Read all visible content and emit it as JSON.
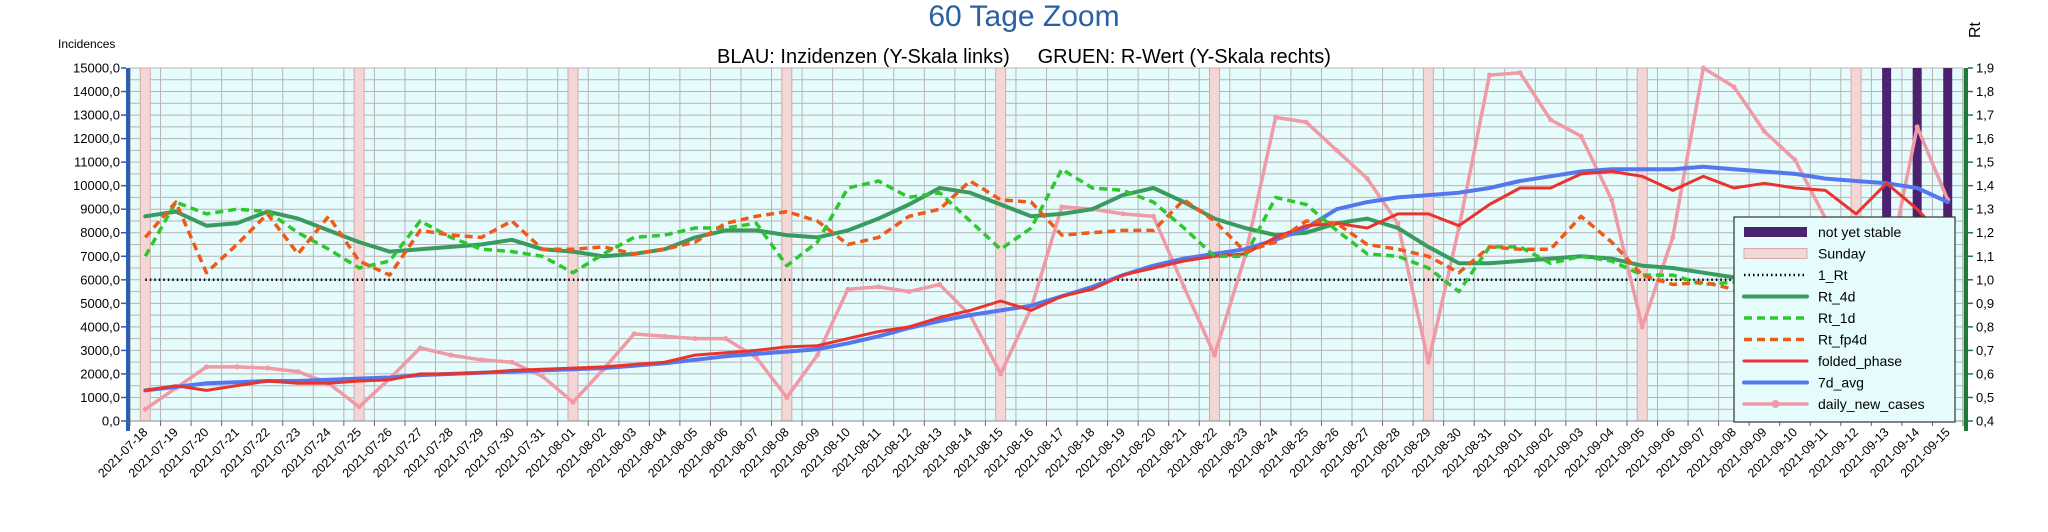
{
  "chart_data": {
    "type": "line",
    "title": "60 Tage Zoom",
    "subtitle": "BLAU: Inzidenzen (Y-Skala links)     GRUEN: R-Wert (Y-Skala rechts)",
    "ylabel": "Incidences",
    "y2label": "Rt",
    "ylim": [
      0,
      15000
    ],
    "y2lim": [
      0.4,
      1.9
    ],
    "yticks": [
      "0,0",
      "1000,0",
      "2000,0",
      "3000,0",
      "4000,0",
      "5000,0",
      "6000,0",
      "7000,0",
      "8000,0",
      "9000,0",
      "10000,0",
      "11000,0",
      "12000,0",
      "13000,0",
      "14000,0",
      "15000,0"
    ],
    "y2ticks": [
      "0,4",
      "0,5",
      "0,6",
      "0,7",
      "0,8",
      "0,9",
      "1,0",
      "1,1",
      "1,2",
      "1,3",
      "1,4",
      "1,5",
      "1,6",
      "1,7",
      "1,8",
      "1,9"
    ],
    "grid": true,
    "legend_position": "right",
    "colors": {
      "background": "#e6fcfc",
      "grid": "#b4b4b4",
      "left_axis": "#2a5fb4",
      "right_axis": "#1f7a3a",
      "title": "#2a5fa6"
    },
    "x": [
      "2021-07-18",
      "2021-07-19",
      "2021-07-20",
      "2021-07-21",
      "2021-07-22",
      "2021-07-23",
      "2021-07-24",
      "2021-07-25",
      "2021-07-26",
      "2021-07-27",
      "2021-07-28",
      "2021-07-29",
      "2021-07-30",
      "2021-07-31",
      "2021-08-01",
      "2021-08-02",
      "2021-08-03",
      "2021-08-04",
      "2021-08-05",
      "2021-08-06",
      "2021-08-07",
      "2021-08-08",
      "2021-08-09",
      "2021-08-10",
      "2021-08-11",
      "2021-08-12",
      "2021-08-13",
      "2021-08-14",
      "2021-08-15",
      "2021-08-16",
      "2021-08-17",
      "2021-08-18",
      "2021-08-19",
      "2021-08-20",
      "2021-08-21",
      "2021-08-22",
      "2021-08-23",
      "2021-08-24",
      "2021-08-25",
      "2021-08-26",
      "2021-08-27",
      "2021-08-28",
      "2021-08-29",
      "2021-08-30",
      "2021-08-31",
      "2021-09-01",
      "2021-09-02",
      "2021-09-03",
      "2021-09-04",
      "2021-09-05",
      "2021-09-06",
      "2021-09-07",
      "2021-09-08",
      "2021-09-09",
      "2021-09-10",
      "2021-09-11",
      "2021-09-12",
      "2021-09-13",
      "2021-09-14",
      "2021-09-15"
    ],
    "sundays": [
      "2021-07-18",
      "2021-07-25",
      "2021-08-01",
      "2021-08-08",
      "2021-08-15",
      "2021-08-22",
      "2021-08-29",
      "2021-09-05",
      "2021-09-12"
    ],
    "not_yet_stable": [
      "2021-09-13",
      "2021-09-14",
      "2021-09-15"
    ],
    "series": [
      {
        "name": "not yet stable",
        "style": "bar",
        "color": "#4b2170"
      },
      {
        "name": "Sunday",
        "style": "bar",
        "color": "#f3d6d6"
      },
      {
        "name": "1_Rt",
        "axis": "right",
        "style": "dotted",
        "color": "#000000",
        "values": [
          1.0,
          1.0,
          1.0,
          1.0,
          1.0,
          1.0,
          1.0,
          1.0,
          1.0,
          1.0,
          1.0,
          1.0,
          1.0,
          1.0,
          1.0,
          1.0,
          1.0,
          1.0,
          1.0,
          1.0,
          1.0,
          1.0,
          1.0,
          1.0,
          1.0,
          1.0,
          1.0,
          1.0,
          1.0,
          1.0,
          1.0,
          1.0,
          1.0,
          1.0,
          1.0,
          1.0,
          1.0,
          1.0,
          1.0,
          1.0,
          1.0,
          1.0,
          1.0,
          1.0,
          1.0,
          1.0,
          1.0,
          1.0,
          1.0,
          1.0,
          1.0,
          1.0,
          1.0,
          1.0,
          1.0,
          1.0,
          1.0,
          1.0,
          1.0,
          1.0
        ]
      },
      {
        "name": "Rt_4d",
        "axis": "right",
        "style": "solid",
        "color": "#3a9a5f",
        "values": [
          1.27,
          1.29,
          1.23,
          1.24,
          1.29,
          1.26,
          1.21,
          1.16,
          1.12,
          1.13,
          1.14,
          1.15,
          1.17,
          1.13,
          1.12,
          1.1,
          1.11,
          1.13,
          1.18,
          1.21,
          1.21,
          1.19,
          1.18,
          1.21,
          1.26,
          1.32,
          1.39,
          1.37,
          1.32,
          1.27,
          1.28,
          1.3,
          1.36,
          1.39,
          1.33,
          1.26,
          1.22,
          1.19,
          1.2,
          1.24,
          1.26,
          1.22,
          1.14,
          1.07,
          1.07,
          1.08,
          1.09,
          1.1,
          1.09,
          1.06,
          1.05,
          1.03,
          1.01,
          1.0,
          0.99,
          0.98,
          0.96,
          0.96,
          0.93,
          0.89
        ]
      },
      {
        "name": "Rt_1d",
        "axis": "right",
        "style": "dashed",
        "color": "#2ec72e",
        "values": [
          1.1,
          1.33,
          1.28,
          1.3,
          1.29,
          1.2,
          1.13,
          1.05,
          1.08,
          1.25,
          1.18,
          1.13,
          1.12,
          1.1,
          1.03,
          1.11,
          1.18,
          1.19,
          1.22,
          1.22,
          1.24,
          1.06,
          1.16,
          1.39,
          1.42,
          1.35,
          1.37,
          1.25,
          1.13,
          1.22,
          1.47,
          1.39,
          1.38,
          1.33,
          1.22,
          1.1,
          1.1,
          1.35,
          1.32,
          1.21,
          1.11,
          1.1,
          1.05,
          0.95,
          1.14,
          1.14,
          1.07,
          1.1,
          1.08,
          1.02,
          1.02,
          0.98,
          0.99,
          0.98,
          0.96,
          0.95,
          0.96,
          0.97,
          0.93,
          0.76
        ]
      },
      {
        "name": "Rt_fp4d",
        "axis": "right",
        "style": "dashed",
        "color": "#ee5a1a",
        "values": [
          1.18,
          1.33,
          1.03,
          1.15,
          1.28,
          1.11,
          1.27,
          1.08,
          1.02,
          1.21,
          1.19,
          1.18,
          1.25,
          1.13,
          1.13,
          1.14,
          1.11,
          1.13,
          1.16,
          1.24,
          1.27,
          1.29,
          1.25,
          1.15,
          1.18,
          1.27,
          1.3,
          1.42,
          1.34,
          1.33,
          1.19,
          1.2,
          1.21,
          1.21,
          1.34,
          1.25,
          1.12,
          1.16,
          1.25,
          1.24,
          1.15,
          1.13,
          1.1,
          1.03,
          1.14,
          1.13,
          1.13,
          1.27,
          1.16,
          1.02,
          0.98,
          0.99,
          0.96,
          0.93,
          0.96,
          1.02,
          0.9,
          0.98,
          0.96,
          0.84
        ]
      },
      {
        "name": "folded_phase",
        "axis": "left",
        "style": "solid",
        "color": "#e8342e",
        "values": [
          1300,
          1500,
          1300,
          1500,
          1700,
          1600,
          1600,
          1700,
          1750,
          2000,
          2000,
          2050,
          2150,
          2200,
          2250,
          2300,
          2400,
          2500,
          2800,
          2900,
          3000,
          3150,
          3200,
          3500,
          3800,
          4000,
          4400,
          4700,
          5100,
          4700,
          5300,
          5600,
          6200,
          6500,
          6800,
          7000,
          7100,
          7800,
          8300,
          8400,
          8200,
          8800,
          8800,
          8300,
          9200,
          9900,
          9900,
          10500,
          10600,
          10400,
          9800,
          10400,
          9900,
          10100,
          9900,
          9800,
          8800,
          10100,
          9000,
          7600
        ]
      },
      {
        "name": "7d_avg",
        "axis": "left",
        "style": "solid",
        "color": "#5577ee",
        "values": [
          1300,
          1450,
          1600,
          1650,
          1700,
          1700,
          1750,
          1800,
          1850,
          1950,
          2000,
          2050,
          2100,
          2150,
          2200,
          2250,
          2350,
          2450,
          2600,
          2750,
          2850,
          2950,
          3050,
          3300,
          3600,
          3950,
          4250,
          4500,
          4700,
          4900,
          5300,
          5700,
          6200,
          6600,
          6900,
          7100,
          7300,
          7700,
          8200,
          9000,
          9300,
          9500,
          9600,
          9700,
          9900,
          10200,
          10400,
          10600,
          10700,
          10700,
          10700,
          10800,
          10700,
          10600,
          10500,
          10300,
          10200,
          10100,
          9900,
          9300
        ]
      },
      {
        "name": "daily_new_cases",
        "axis": "left",
        "style": "solid",
        "marker": "circle",
        "color": "#ef9aa6",
        "values": [
          500,
          1400,
          2300,
          2300,
          2250,
          2100,
          1600,
          600,
          1800,
          3100,
          2800,
          2600,
          2500,
          1900,
          800,
          2200,
          3700,
          3600,
          3500,
          3500,
          2700,
          1000,
          2800,
          5600,
          5700,
          5500,
          5800,
          4500,
          2000,
          4800,
          9100,
          9000,
          8800,
          8700,
          5700,
          2800,
          7000,
          12900,
          12700,
          11500,
          10300,
          8400,
          2500,
          8200,
          14700,
          14800,
          12800,
          12100,
          9400,
          4000,
          7800,
          15000,
          14200,
          12300,
          11100,
          8600,
          3000,
          6100,
          12500,
          9400
        ]
      }
    ]
  }
}
